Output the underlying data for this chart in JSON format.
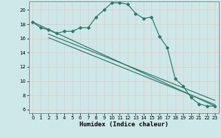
{
  "xlabel": "Humidex (Indice chaleur)",
  "ylabel": "",
  "bg_color": "#cde8e8",
  "grid_color": "#e8c8c8",
  "line_color": "#2a7a6a",
  "xlim": [
    -0.5,
    23.5
  ],
  "ylim": [
    5.5,
    21.2
  ],
  "yticks": [
    6,
    8,
    10,
    12,
    14,
    16,
    18,
    20
  ],
  "xticks": [
    0,
    1,
    2,
    3,
    4,
    5,
    6,
    7,
    8,
    9,
    10,
    11,
    12,
    13,
    14,
    15,
    16,
    17,
    18,
    19,
    20,
    21,
    22,
    23
  ],
  "curve1_x": [
    0,
    1,
    2,
    3,
    4,
    5,
    6,
    7,
    8,
    9,
    10,
    11,
    12,
    13,
    14,
    15,
    16,
    17,
    18,
    19,
    20,
    21,
    22,
    23
  ],
  "curve1_y": [
    18.3,
    17.5,
    17.2,
    16.7,
    17.0,
    17.0,
    17.5,
    17.5,
    19.0,
    20.0,
    21.0,
    21.0,
    20.8,
    19.5,
    18.8,
    19.0,
    16.3,
    14.7,
    10.3,
    9.3,
    7.7,
    6.8,
    6.5,
    6.5
  ],
  "line1_x": [
    0,
    23
  ],
  "line1_y": [
    18.3,
    6.5
  ],
  "line2_x": [
    2,
    23
  ],
  "line2_y": [
    16.1,
    6.7
  ],
  "line3_x": [
    2,
    23
  ],
  "line3_y": [
    16.6,
    7.3
  ]
}
